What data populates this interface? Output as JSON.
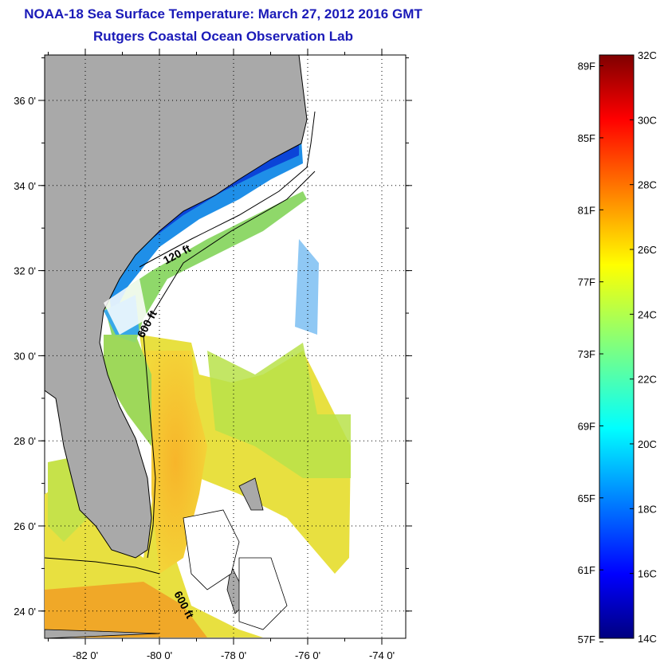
{
  "header": {
    "title": "NOAA-18 Sea Surface Temperature:  March 27, 2012 2016 GMT",
    "subtitle": "Rutgers Coastal Ocean Observation Lab"
  },
  "map": {
    "lat_labels": [
      {
        "value": 36,
        "text": "36 0'"
      },
      {
        "value": 34,
        "text": "34 0'"
      },
      {
        "value": 32,
        "text": "32 0'"
      },
      {
        "value": 30,
        "text": "30 0'"
      },
      {
        "value": 28,
        "text": "28 0'"
      },
      {
        "value": 26,
        "text": "26 0'"
      },
      {
        "value": 24,
        "text": "24 0'"
      }
    ],
    "lon_labels": [
      {
        "value": -82,
        "text": "-82 0'"
      },
      {
        "value": -80,
        "text": "-80 0'"
      },
      {
        "value": -78,
        "text": "-78 0'"
      },
      {
        "value": -76,
        "text": "-76 0'"
      },
      {
        "value": -74,
        "text": "-74 0'"
      }
    ],
    "contour_labels": [
      "120 ft",
      "600 ft",
      "600 ft"
    ],
    "colors": {
      "land": "#a9a9a9",
      "grid": "#000000"
    }
  },
  "colorbar": {
    "fahrenheit": [
      {
        "value": 89,
        "text": "89F"
      },
      {
        "value": 85,
        "text": "85F"
      },
      {
        "value": 81,
        "text": "81F"
      },
      {
        "value": 77,
        "text": "77F"
      },
      {
        "value": 73,
        "text": "73F"
      },
      {
        "value": 69,
        "text": "69F"
      },
      {
        "value": 65,
        "text": "65F"
      },
      {
        "value": 61,
        "text": "61F"
      },
      {
        "value": 57,
        "text": "57F"
      }
    ],
    "celsius": [
      {
        "value": 32,
        "text": "32C"
      },
      {
        "value": 30,
        "text": "30C"
      },
      {
        "value": 28,
        "text": "28C"
      },
      {
        "value": 26,
        "text": "26C"
      },
      {
        "value": 24,
        "text": "24C"
      },
      {
        "value": 22,
        "text": "22C"
      },
      {
        "value": 20,
        "text": "20C"
      },
      {
        "value": 18,
        "text": "18C"
      },
      {
        "value": 16,
        "text": "16C"
      },
      {
        "value": 14,
        "text": "14C"
      }
    ],
    "colormap": "jet",
    "range_c": [
      14,
      32
    ]
  }
}
